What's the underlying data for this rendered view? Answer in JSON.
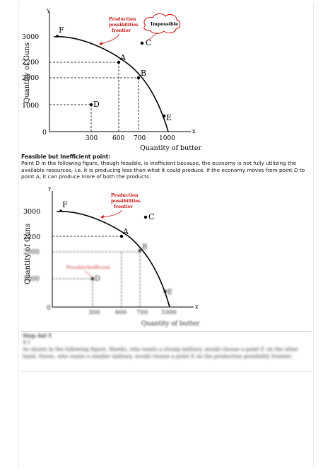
{
  "figure1": {
    "y_axis_letter": "Y",
    "x_axis_letter": "x",
    "ylabel": "Quantity of Guns",
    "xlabel": "Quantity of butter",
    "y_ticks": [
      "3000",
      "2200",
      "2000",
      "1000",
      "0"
    ],
    "x_ticks": [
      "300",
      "600",
      "700",
      "1000"
    ],
    "points": {
      "F": "F",
      "A": "A",
      "B": "B",
      "C": "C",
      "D": "D",
      "E": "E"
    },
    "ppf_label_lines": [
      "Production",
      "possibilities",
      "frontier"
    ],
    "impossible_label": "Impossible"
  },
  "text": {
    "heading": "Feasible but Inefficient point:",
    "paragraph": "Point D in the following figure, though feasible, is inefficient because, the economy is not fully utilizing the available resources, i.e. it is producing less than what it could produce. If the economy moves from point D to point A, it can produce more of both the products."
  },
  "figure2": {
    "y_axis_letter": "Y",
    "x_axis_letter": "x",
    "ylabel": "Quantity of Guns",
    "xlabel": "Quantity of butter",
    "y_ticks": [
      "3000",
      "2200",
      "2000",
      "1000",
      "0"
    ],
    "x_ticks": [
      "300",
      "600",
      "700",
      "1000"
    ],
    "points": {
      "F": "F",
      "A": "A",
      "B": "B",
      "C": "C",
      "D": "D",
      "E": "E"
    },
    "ppf_label_lines": [
      "Production",
      "possibilities",
      "frontier"
    ],
    "inefficient_label": "Feasible/Inefficient"
  },
  "blurred": {
    "step": "Step 4of 5",
    "substep": "4.1",
    "line1": "As shown in the following figure, Hawks, who wants a strong military, would choose a point F, on the other",
    "line2": "hand, Doves, who wants a smaller military, would choose a point E on the production possibility frontier."
  },
  "chart_data": [
    {
      "type": "line",
      "title": "",
      "xlabel": "Quantity of butter",
      "ylabel": "Quantity of Guns",
      "x_ticks": [
        300,
        600,
        700,
        1000
      ],
      "y_ticks": [
        1000,
        2000,
        2200,
        3000
      ],
      "series": [
        {
          "name": "Production possibilities frontier",
          "x": [
            0,
            600,
            700,
            950,
            1000
          ],
          "y": [
            3000,
            2200,
            2000,
            500,
            0
          ]
        }
      ],
      "points": [
        {
          "label": "F",
          "x": 0,
          "y": 3000
        },
        {
          "label": "A",
          "x": 600,
          "y": 2200
        },
        {
          "label": "B",
          "x": 700,
          "y": 2000
        },
        {
          "label": "C",
          "x": 850,
          "y": 2700
        },
        {
          "label": "D",
          "x": 300,
          "y": 1000
        },
        {
          "label": "E",
          "x": 950,
          "y": 500
        }
      ],
      "annotations": [
        "Production possibilities frontier",
        "Impossible"
      ]
    },
    {
      "type": "line",
      "title": "",
      "xlabel": "Quantity of butter",
      "ylabel": "Quantity of Guns",
      "x_ticks": [
        300,
        600,
        700,
        1000
      ],
      "y_ticks": [
        1000,
        2000,
        2200,
        3000
      ],
      "series": [
        {
          "name": "Production possibilities frontier",
          "x": [
            0,
            600,
            700,
            950,
            1000
          ],
          "y": [
            3000,
            2200,
            2000,
            500,
            0
          ]
        }
      ],
      "points": [
        {
          "label": "F",
          "x": 0,
          "y": 3000
        },
        {
          "label": "A",
          "x": 600,
          "y": 2200
        },
        {
          "label": "B",
          "x": 700,
          "y": 2000
        },
        {
          "label": "C",
          "x": 850,
          "y": 2700
        },
        {
          "label": "D",
          "x": 300,
          "y": 1000
        },
        {
          "label": "E",
          "x": 950,
          "y": 500
        }
      ],
      "annotations": [
        "Production possibilities frontier",
        "Feasible/Inefficient"
      ]
    }
  ],
  "colors": {
    "curve": "#000000",
    "annotation": "#cc1111",
    "dash": "#000000"
  }
}
